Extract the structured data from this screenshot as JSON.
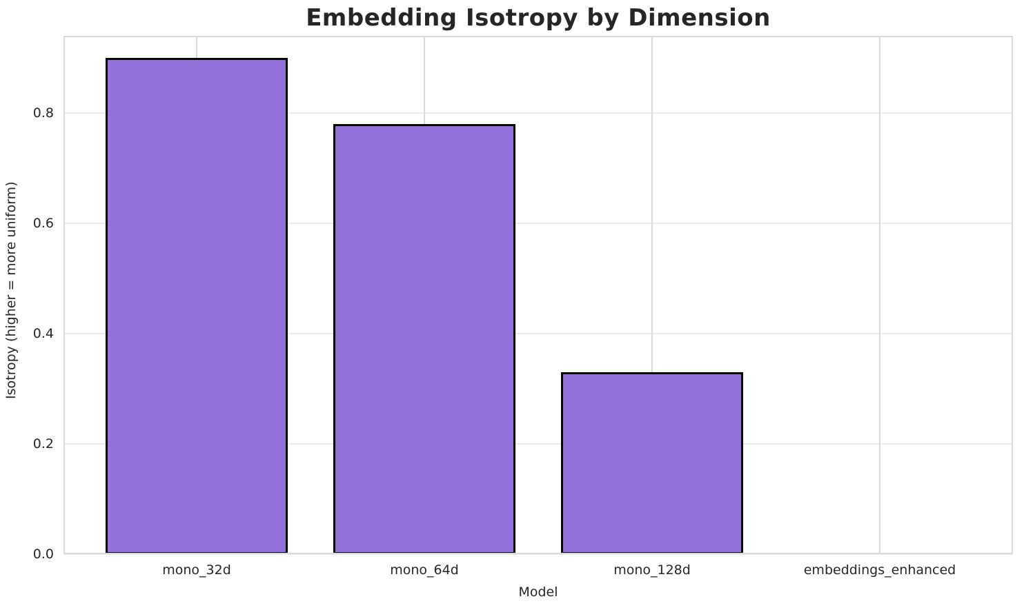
{
  "chart_data": {
    "type": "bar",
    "title": "Embedding Isotropy by Dimension",
    "xlabel": "Model",
    "ylabel": "Isotropy (higher = more uniform)",
    "categories": [
      "mono_32d",
      "mono_64d",
      "mono_128d",
      "embeddings_enhanced"
    ],
    "values": [
      0.9,
      0.78,
      0.33,
      0.0
    ],
    "ylim": [
      0,
      0.94
    ],
    "yticks": [
      0.0,
      0.2,
      0.4,
      0.6,
      0.8
    ],
    "ytick_labels": [
      "0.0",
      "0.2",
      "0.4",
      "0.6",
      "0.8"
    ],
    "grid": "on",
    "legend_position": "none",
    "colors": {
      "bar_fill": "#9370DB",
      "bar_edge": "#000000",
      "grid_horizontal": "#ececec",
      "grid_vertical": "#d9d9d9",
      "spine": "#d9d9d9",
      "text": "#262626",
      "background": "#ffffff"
    }
  }
}
